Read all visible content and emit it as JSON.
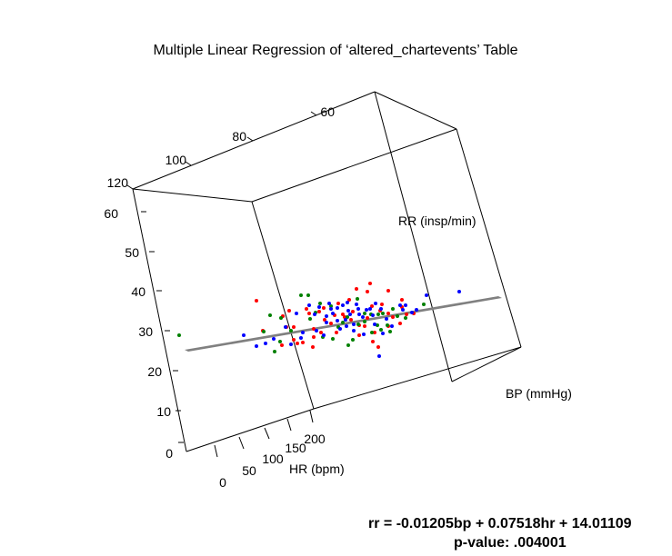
{
  "chart_data": {
    "type": "scatter",
    "title": "Multiple Linear Regression of ‘altered_chartevents’ Table",
    "projection": "3d",
    "axes": {
      "hr": {
        "label": "HR (bpm)",
        "ticks": [
          "0",
          "50",
          "100",
          "150",
          "200"
        ]
      },
      "bp": {
        "label": "BP (mmHg)",
        "ticks": [
          "60",
          "80",
          "100",
          "120"
        ]
      },
      "rr": {
        "label": "RR (insp/min)",
        "ticks": [
          "0",
          "10",
          "20",
          "30",
          "40",
          "50",
          "60"
        ]
      }
    },
    "plane": {
      "bp": -0.01205,
      "hr": 0.07518,
      "intercept": 14.01109,
      "color": "#808080"
    },
    "series": [
      {
        "color": "#ff0000",
        "points": [
          [
            282,
            331
          ],
          [
            318,
            342
          ],
          [
            337,
            340
          ],
          [
            351,
            343
          ],
          [
            357,
            352
          ],
          [
            372,
            334
          ],
          [
            377,
            346
          ],
          [
            384,
            330
          ],
          [
            388,
            343
          ],
          [
            395,
            358
          ],
          [
            404,
            321
          ],
          [
            404,
            350
          ],
          [
            409,
            337
          ],
          [
            418,
            342
          ],
          [
            427,
            320
          ],
          [
            432,
            349
          ],
          [
            333,
            377
          ],
          [
            344,
            382
          ],
          [
            323,
            374
          ],
          [
            327,
            378
          ],
          [
            345,
            371
          ],
          [
            356,
            339
          ],
          [
            368,
            347
          ],
          [
            401,
            359
          ],
          [
            420,
            335
          ],
          [
            440,
            356
          ],
          [
            315,
            360
          ],
          [
            310,
            380
          ],
          [
            353,
            366
          ],
          [
            395,
            369
          ],
          [
            410,
            376
          ],
          [
            412,
            366
          ],
          [
            416,
            382
          ],
          [
            379,
            349
          ],
          [
            386,
            352
          ],
          [
            427,
            359
          ],
          [
            442,
            338
          ],
          [
            447,
            346
          ],
          [
            455,
            345
          ],
          [
            364,
            356
          ],
          [
            370,
            366
          ],
          [
            407,
            312
          ],
          [
            392,
            318
          ],
          [
            345,
            362
          ],
          [
            340,
            345
          ],
          [
            323,
            360
          ],
          [
            289,
            364
          ],
          [
            427,
            345
          ],
          [
            442,
            330
          ],
          [
            311,
            348
          ]
        ]
      },
      {
        "color": "#008000",
        "points": [
          [
            197,
            369
          ],
          [
            297,
            347
          ],
          [
            309,
            350
          ],
          [
            320,
            364
          ],
          [
            331,
            325
          ],
          [
            339,
            325
          ],
          [
            352,
            334
          ],
          [
            364,
            337
          ],
          [
            372,
            360
          ],
          [
            382,
            349
          ],
          [
            388,
            374
          ],
          [
            393,
            329
          ],
          [
            401,
            345
          ],
          [
            408,
            346
          ],
          [
            415,
            358
          ],
          [
            426,
            358
          ],
          [
            432,
            340
          ],
          [
            446,
            350
          ],
          [
            466,
            335
          ],
          [
            383,
            380
          ],
          [
            366,
            373
          ],
          [
            401,
            354
          ],
          [
            355,
            371
          ],
          [
            302,
            387
          ],
          [
            290,
            365
          ],
          [
            308,
            376
          ],
          [
            341,
            351
          ],
          [
            377,
            355
          ],
          [
            394,
            357
          ],
          [
            416,
            346
          ],
          [
            429,
            365
          ],
          [
            437,
            348
          ],
          [
            347,
            344
          ],
          [
            421,
            345
          ],
          [
            409,
            366
          ],
          [
            419,
            363
          ]
        ]
      },
      {
        "color": "#0000ff",
        "points": [
          [
            268,
            369
          ],
          [
            282,
            381
          ],
          [
            314,
            360
          ],
          [
            326,
            345
          ],
          [
            331,
            372
          ],
          [
            340,
            336
          ],
          [
            346,
            346
          ],
          [
            351,
            338
          ],
          [
            359,
            348
          ],
          [
            366,
            345
          ],
          [
            371,
            339
          ],
          [
            377,
            336
          ],
          [
            383,
            342
          ],
          [
            389,
            357
          ],
          [
            392,
            335
          ],
          [
            399,
            349
          ],
          [
            403,
            341
          ],
          [
            410,
            347
          ],
          [
            419,
            340
          ],
          [
            425,
            351
          ],
          [
            431,
            359
          ],
          [
            440,
            336
          ],
          [
            446,
            336
          ],
          [
            453,
            344
          ],
          [
            458,
            341
          ],
          [
            469,
            325
          ],
          [
            505,
            321
          ],
          [
            417,
            392
          ],
          [
            292,
            378
          ],
          [
            301,
            373
          ],
          [
            320,
            379
          ],
          [
            333,
            366
          ],
          [
            348,
            364
          ],
          [
            359,
            355
          ],
          [
            371,
            353
          ],
          [
            381,
            359
          ],
          [
            389,
            364
          ],
          [
            400,
            368
          ],
          [
            412,
            357
          ],
          [
            421,
            367
          ],
          [
            356,
            369
          ],
          [
            364,
            340
          ],
          [
            395,
            346
          ],
          [
            413,
            334
          ],
          [
            382,
            333
          ],
          [
            362,
            334
          ],
          [
            374,
            362
          ],
          [
            380,
            352
          ],
          [
            394,
            340
          ],
          [
            443,
            341
          ],
          [
            407,
            340
          ],
          [
            385,
            346
          ]
        ]
      }
    ]
  },
  "equation": {
    "line1": "rr = -0.01205bp + 0.07518hr + 14.01109",
    "line2": "p-value: .004001"
  }
}
